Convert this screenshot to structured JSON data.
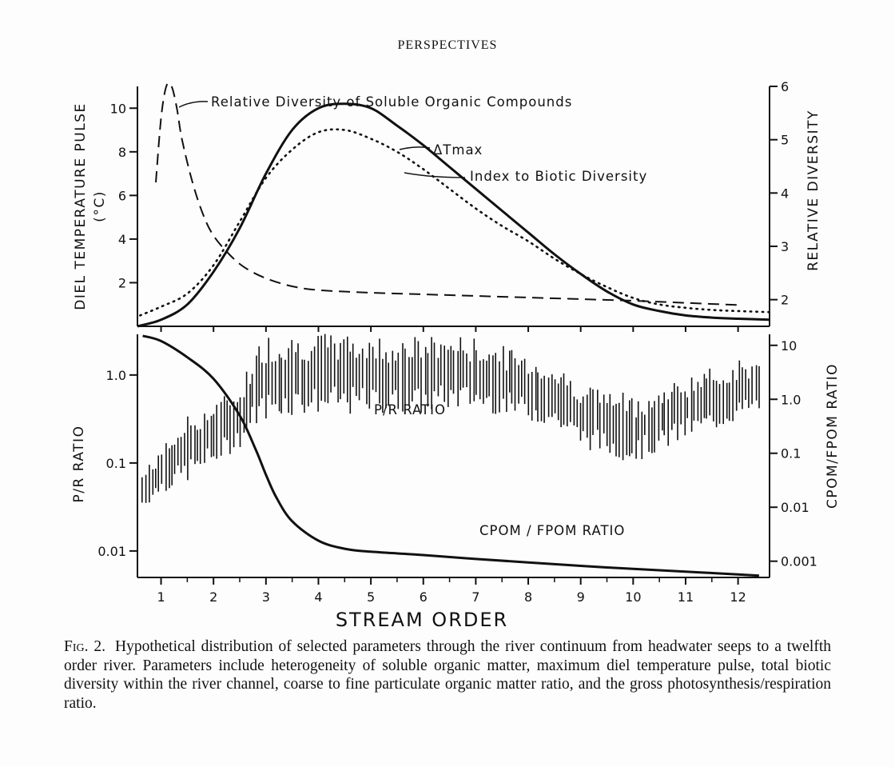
{
  "header": {
    "running_head": "PERSPECTIVES"
  },
  "chart_data": [
    {
      "type": "line",
      "panel": "top",
      "ylabel_left": "DIEL TEMPERATURE PULSE",
      "ylabel_left_unit": "(°C)",
      "ylabel_right": "RELATIVE DIVERSITY",
      "x_range": [
        0.55,
        12.6
      ],
      "ylim_left": [
        0,
        11
      ],
      "ylim_right": [
        1.5,
        6
      ],
      "yticks_left": [
        "2",
        "4",
        "6",
        "8",
        "10"
      ],
      "yticks_left_values": [
        2,
        4,
        6,
        8,
        10
      ],
      "yticks_right": [
        "2",
        "3",
        "4",
        "5",
        "6"
      ],
      "yticks_right_values": [
        2,
        3,
        4,
        5,
        6
      ],
      "series": [
        {
          "name": "Relative Diversity of Soluble Organic Compounds",
          "axis": "right",
          "style": "dashed",
          "x": [
            0.9,
            1.0,
            1.1,
            1.2,
            1.3,
            1.4,
            1.6,
            1.8,
            2.0,
            2.3,
            2.6,
            3.0,
            3.5,
            4.0,
            5.0,
            6.0,
            7.0,
            8.0,
            9.0,
            10.0,
            11.0,
            12.0
          ],
          "y": [
            4.2,
            5.4,
            6.0,
            6.0,
            5.6,
            5.0,
            4.2,
            3.6,
            3.2,
            2.85,
            2.6,
            2.4,
            2.25,
            2.18,
            2.13,
            2.1,
            2.07,
            2.04,
            2.01,
            1.98,
            1.94,
            1.9
          ]
        },
        {
          "name": "ΔTmax",
          "axis": "left",
          "style": "solid",
          "x": [
            0.55,
            1.0,
            1.5,
            2.0,
            2.5,
            3.0,
            3.5,
            4.0,
            4.5,
            5.0,
            5.5,
            6.0,
            6.5,
            7.0,
            7.5,
            8.0,
            8.5,
            9.0,
            9.5,
            10.0,
            10.5,
            11.0,
            11.5,
            12.0,
            12.6
          ],
          "y": [
            0.0,
            0.3,
            1.0,
            2.5,
            4.5,
            7.0,
            9.0,
            10.0,
            10.2,
            10.0,
            9.2,
            8.3,
            7.3,
            6.3,
            5.3,
            4.3,
            3.3,
            2.4,
            1.6,
            1.0,
            0.7,
            0.5,
            0.4,
            0.35,
            0.3
          ]
        },
        {
          "name": "Index to Biotic Diversity",
          "axis": "left",
          "style": "dotted",
          "x": [
            0.6,
            1.0,
            1.5,
            2.0,
            2.5,
            3.0,
            3.5,
            4.0,
            4.5,
            5.0,
            5.5,
            6.0,
            6.5,
            7.0,
            7.5,
            8.0,
            8.5,
            9.0,
            9.5,
            10.0,
            10.5,
            11.0,
            11.5,
            12.0,
            12.6
          ],
          "y": [
            0.5,
            0.9,
            1.5,
            2.8,
            4.8,
            6.8,
            8.1,
            8.9,
            9.0,
            8.6,
            8.0,
            7.2,
            6.3,
            5.4,
            4.6,
            3.9,
            3.1,
            2.4,
            1.8,
            1.3,
            1.0,
            0.85,
            0.75,
            0.7,
            0.65
          ]
        }
      ],
      "annotations": [
        {
          "target": "Relative Diversity of Soluble Organic Compounds",
          "text": "Relative Diversity of Soluble Organic Compounds"
        },
        {
          "target": "ΔTmax",
          "text": "ΔTmax"
        },
        {
          "target": "Index to Biotic Diversity",
          "text": "Index to Biotic Diversity"
        }
      ],
      "grid": false
    },
    {
      "type": "line",
      "panel": "bottom",
      "ylabel_left": "P/R RATIO",
      "ylabel_right": "CPOM/FPOM RATIO",
      "xlabel": "STREAM ORDER",
      "x_range": [
        0.55,
        12.6
      ],
      "xticks": [
        "1",
        "2",
        "3",
        "4",
        "5",
        "6",
        "7",
        "8",
        "9",
        "10",
        "11",
        "12"
      ],
      "xticks_values": [
        1,
        2,
        3,
        4,
        5,
        6,
        7,
        8,
        9,
        10,
        11,
        12
      ],
      "y_scale": "log",
      "ylim_left": [
        0.005,
        2.9
      ],
      "yticks_left": [
        "0.01",
        "0.1",
        "1.0"
      ],
      "yticks_left_values": [
        0.01,
        0.1,
        1.0
      ],
      "ylim_right": [
        0.0005,
        16
      ],
      "yticks_right": [
        "0.001",
        "0.01",
        "0.1",
        "1.0",
        "10"
      ],
      "yticks_right_values": [
        0.001,
        0.01,
        0.1,
        1.0,
        10
      ],
      "series": [
        {
          "name": "P/R RATIO",
          "axis": "left",
          "style": "vertical-ranges",
          "x": [
            0.65,
            1.0,
            1.5,
            2.0,
            2.5,
            2.8,
            3.0,
            3.5,
            4.0,
            4.5,
            5.0,
            5.5,
            6.0,
            6.5,
            7.0,
            7.5,
            8.0,
            8.5,
            9.0,
            9.5,
            10.0,
            10.5,
            11.0,
            11.5,
            12.0,
            12.4
          ],
          "y": [
            0.05,
            0.08,
            0.12,
            0.2,
            0.35,
            0.6,
            0.9,
            1.1,
            1.2,
            1.15,
            1.1,
            1.05,
            1.1,
            1.2,
            1.1,
            0.9,
            0.7,
            0.5,
            0.35,
            0.25,
            0.22,
            0.28,
            0.4,
            0.5,
            0.7,
            0.8
          ],
          "y_low": [
            0.03,
            0.045,
            0.06,
            0.09,
            0.15,
            0.25,
            0.3,
            0.35,
            0.35,
            0.35,
            0.35,
            0.35,
            0.35,
            0.4,
            0.4,
            0.35,
            0.3,
            0.25,
            0.15,
            0.12,
            0.1,
            0.13,
            0.18,
            0.22,
            0.3,
            0.35
          ],
          "y_high": [
            0.08,
            0.15,
            0.35,
            0.5,
            0.8,
            2.0,
            3.0,
            3.0,
            3.0,
            3.0,
            2.8,
            2.8,
            2.8,
            3.0,
            2.6,
            2.2,
            1.8,
            1.3,
            0.9,
            0.7,
            0.6,
            0.7,
            1.0,
            1.2,
            1.5,
            1.5
          ]
        },
        {
          "name": "CPOM/FPOM RATIO",
          "axis": "right",
          "style": "solid",
          "x": [
            0.65,
            1.0,
            1.5,
            2.0,
            2.5,
            2.8,
            3.0,
            3.2,
            3.5,
            4.0,
            4.5,
            5.0,
            6.0,
            7.0,
            8.0,
            9.0,
            10.0,
            11.0,
            12.0,
            12.4
          ],
          "y": [
            15.0,
            12.0,
            6.0,
            2.4,
            0.5,
            0.12,
            0.04,
            0.015,
            0.0055,
            0.0024,
            0.0017,
            0.0015,
            0.0013,
            0.0011,
            0.00095,
            0.00082,
            0.00072,
            0.00064,
            0.00057,
            0.00054
          ]
        }
      ],
      "annotations": [
        {
          "target": "P/R RATIO",
          "text": "P/R RATIO"
        },
        {
          "target": "CPOM/FPOM RATIO",
          "text": "CPOM / FPOM RATIO"
        }
      ],
      "grid": false
    }
  ],
  "caption": {
    "label": "Fig. 2.",
    "text": "Hypothetical distribution of selected parameters through the river continuum from headwater seeps to a twelfth order river. Parameters include heterogeneity of soluble organic matter, maximum diel temperature pulse, total biotic diversity within the river channel, coarse to fine particulate organic matter ratio, and the gross photosynthesis/respiration ratio."
  }
}
